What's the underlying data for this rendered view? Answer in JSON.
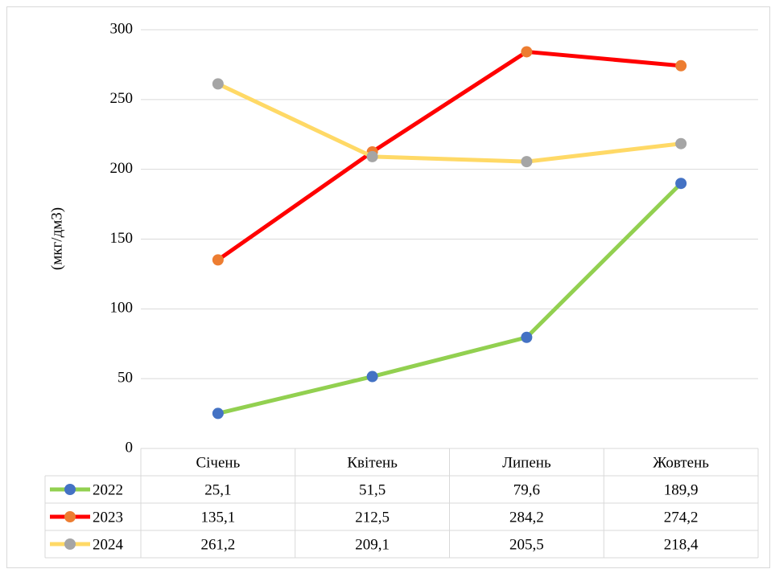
{
  "chart_data": {
    "type": "line",
    "y_label": "(мкг/дм3)",
    "categories": [
      "Січень",
      "Квітень",
      "Липень",
      "Жовтень"
    ],
    "series": [
      {
        "name": "2022",
        "color": "#92d050",
        "marker_color": "#4472c4",
        "values": [
          25.1,
          51.5,
          79.6,
          189.9
        ],
        "value_labels": [
          "25,1",
          "51,5",
          "79,6",
          "189,9"
        ]
      },
      {
        "name": "2023",
        "color": "#ff0000",
        "marker_color": "#ed7d31",
        "values": [
          135.1,
          212.5,
          284.2,
          274.2
        ],
        "value_labels": [
          "135,1",
          "212,5",
          "284,2",
          "274,2"
        ]
      },
      {
        "name": "2024",
        "color": "#ffd966",
        "marker_color": "#a5a5a5",
        "values": [
          261.2,
          209.1,
          205.5,
          218.4
        ],
        "value_labels": [
          "261,2",
          "209,1",
          "205,5",
          "218,4"
        ]
      }
    ],
    "ylim": [
      0,
      300
    ],
    "yticks": [
      0,
      50,
      100,
      150,
      200,
      250,
      300
    ],
    "grid": true
  }
}
